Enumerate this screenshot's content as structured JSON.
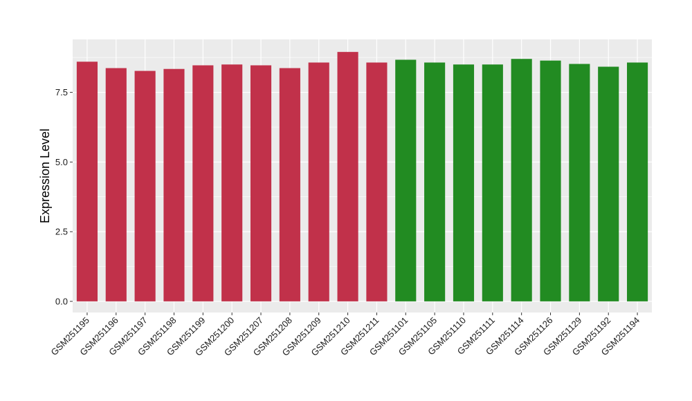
{
  "chart_data": {
    "type": "bar",
    "title": "",
    "xlabel": "",
    "ylabel": "Expression Level",
    "ylim": [
      -0.4,
      9.4
    ],
    "y_ticks": [
      0.0,
      2.5,
      5.0,
      7.5
    ],
    "y_tick_labels": [
      "0.0",
      "2.5",
      "5.0",
      "7.5"
    ],
    "grid": true,
    "categories": [
      "GSM251195",
      "GSM251196",
      "GSM251197",
      "GSM251198",
      "GSM251199",
      "GSM251200",
      "GSM251207",
      "GSM251208",
      "GSM251209",
      "GSM251210",
      "GSM251211",
      "GSM251101",
      "GSM251105",
      "GSM251110",
      "GSM251111",
      "GSM251114",
      "GSM251126",
      "GSM251129",
      "GSM251192",
      "GSM251194"
    ],
    "values": [
      8.6,
      8.37,
      8.27,
      8.34,
      8.47,
      8.5,
      8.47,
      8.37,
      8.57,
      8.95,
      8.57,
      8.67,
      8.57,
      8.5,
      8.5,
      8.7,
      8.64,
      8.52,
      8.42,
      8.57
    ],
    "bar_colors": [
      "#C1314A",
      "#C1314A",
      "#C1314A",
      "#C1314A",
      "#C1314A",
      "#C1314A",
      "#C1314A",
      "#C1314A",
      "#C1314A",
      "#C1314A",
      "#C1314A",
      "#228B22",
      "#228B22",
      "#228B22",
      "#228B22",
      "#228B22",
      "#228B22",
      "#228B22",
      "#228B22",
      "#228B22"
    ],
    "panel_color": "#EBEBEB",
    "grid_color": "#FFFFFF"
  }
}
